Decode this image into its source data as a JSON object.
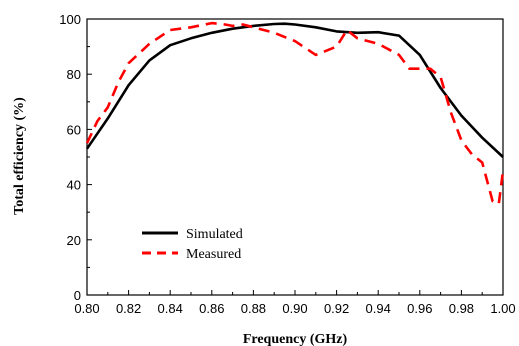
{
  "chart_data": {
    "type": "line",
    "title": "",
    "xlabel": "Frequency (GHz)",
    "ylabel": "Total efficiency (%)",
    "xlim": [
      0.8,
      1.0
    ],
    "ylim": [
      0,
      100
    ],
    "x_ticks": [
      0.8,
      0.82,
      0.84,
      0.86,
      0.88,
      0.9,
      0.92,
      0.94,
      0.96,
      0.98,
      1.0
    ],
    "x_tick_labels": [
      "0.80",
      "0.82",
      "0.84",
      "0.86",
      "0.88",
      "0.90",
      "0.92",
      "0.94",
      "0.96",
      "0.98",
      "1.00"
    ],
    "y_ticks": [
      0,
      20,
      40,
      60,
      80,
      100
    ],
    "y_tick_labels": [
      "0",
      "20",
      "40",
      "60",
      "80",
      "100"
    ],
    "grid": false,
    "legend_position": "bottom-left",
    "series": [
      {
        "name": "Simulated",
        "color": "#000000",
        "style": "solid",
        "x": [
          0.8,
          0.81,
          0.82,
          0.83,
          0.84,
          0.85,
          0.86,
          0.87,
          0.88,
          0.89,
          0.895,
          0.9,
          0.91,
          0.92,
          0.93,
          0.94,
          0.95,
          0.96,
          0.97,
          0.98,
          0.99,
          1.0
        ],
        "y": [
          53,
          64,
          76,
          85,
          90.5,
          93,
          95,
          96.5,
          97.5,
          98.2,
          98.3,
          98,
          97,
          95.5,
          95,
          95.2,
          94,
          87,
          75,
          65,
          57,
          50
        ]
      },
      {
        "name": "Measured",
        "color": "#ff0000",
        "style": "dashed",
        "x": [
          0.8,
          0.805,
          0.81,
          0.815,
          0.82,
          0.83,
          0.84,
          0.85,
          0.86,
          0.865,
          0.87,
          0.875,
          0.88,
          0.89,
          0.9,
          0.91,
          0.92,
          0.925,
          0.93,
          0.94,
          0.95,
          0.955,
          0.96,
          0.965,
          0.97,
          0.975,
          0.98,
          0.985,
          0.99,
          0.995,
          0.998,
          1.0
        ],
        "y": [
          55,
          63,
          68,
          77,
          84,
          91,
          96,
          97,
          98.5,
          98.2,
          97.5,
          98,
          97,
          95,
          92,
          87,
          90,
          96,
          93,
          91,
          87,
          82,
          82,
          82,
          79,
          66,
          56,
          51,
          48,
          34,
          33,
          45
        ]
      }
    ]
  }
}
